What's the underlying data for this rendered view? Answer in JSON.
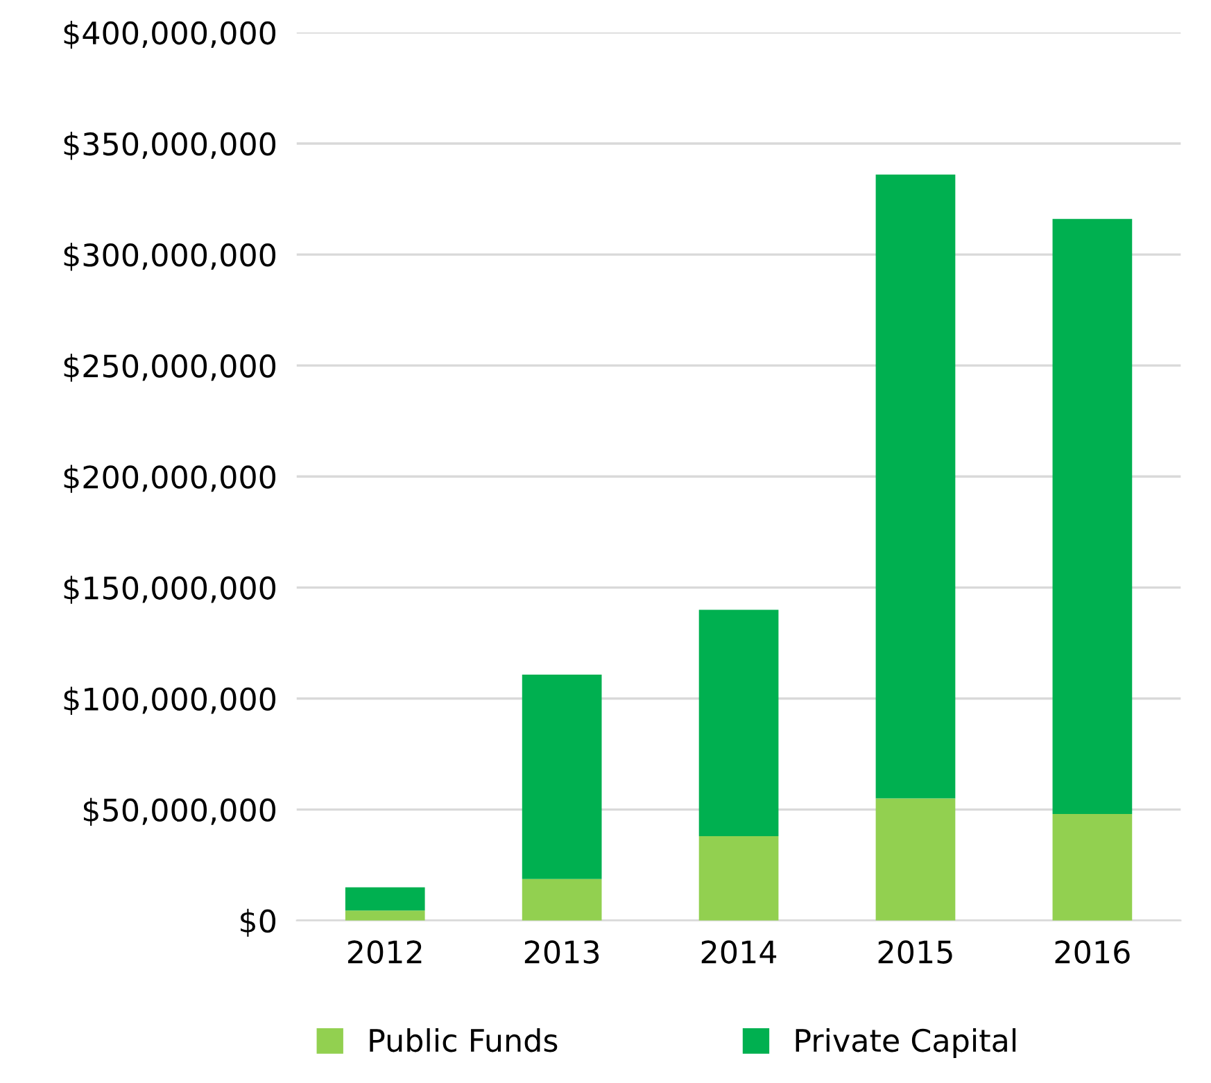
{
  "chart_data": {
    "type": "bar",
    "stacked": true,
    "categories": [
      "2012",
      "2013",
      "2014",
      "2015",
      "2016"
    ],
    "series": [
      {
        "name": "Public Funds",
        "color": "#92d050",
        "values": [
          4500000,
          18750000,
          38000000,
          55000000,
          48000000
        ]
      },
      {
        "name": "Private Capital",
        "color": "#00b050",
        "values": [
          10500000,
          92000000,
          102000000,
          281000000,
          268000000
        ]
      }
    ],
    "ylim": [
      0,
      400000000
    ],
    "yticks": [
      {
        "value": 0,
        "label": "$0"
      },
      {
        "value": 50000000,
        "label": "$50,000,000"
      },
      {
        "value": 100000000,
        "label": "$100,000,000"
      },
      {
        "value": 150000000,
        "label": "$150,000,000"
      },
      {
        "value": 200000000,
        "label": "$200,000,000"
      },
      {
        "value": 250000000,
        "label": "$250,000,000"
      },
      {
        "value": 300000000,
        "label": "$300,000,000"
      },
      {
        "value": 350000000,
        "label": "$350,000,000"
      },
      {
        "value": 400000000,
        "label": "$400,000,000"
      }
    ],
    "grid": "y",
    "legend": "bottom"
  }
}
